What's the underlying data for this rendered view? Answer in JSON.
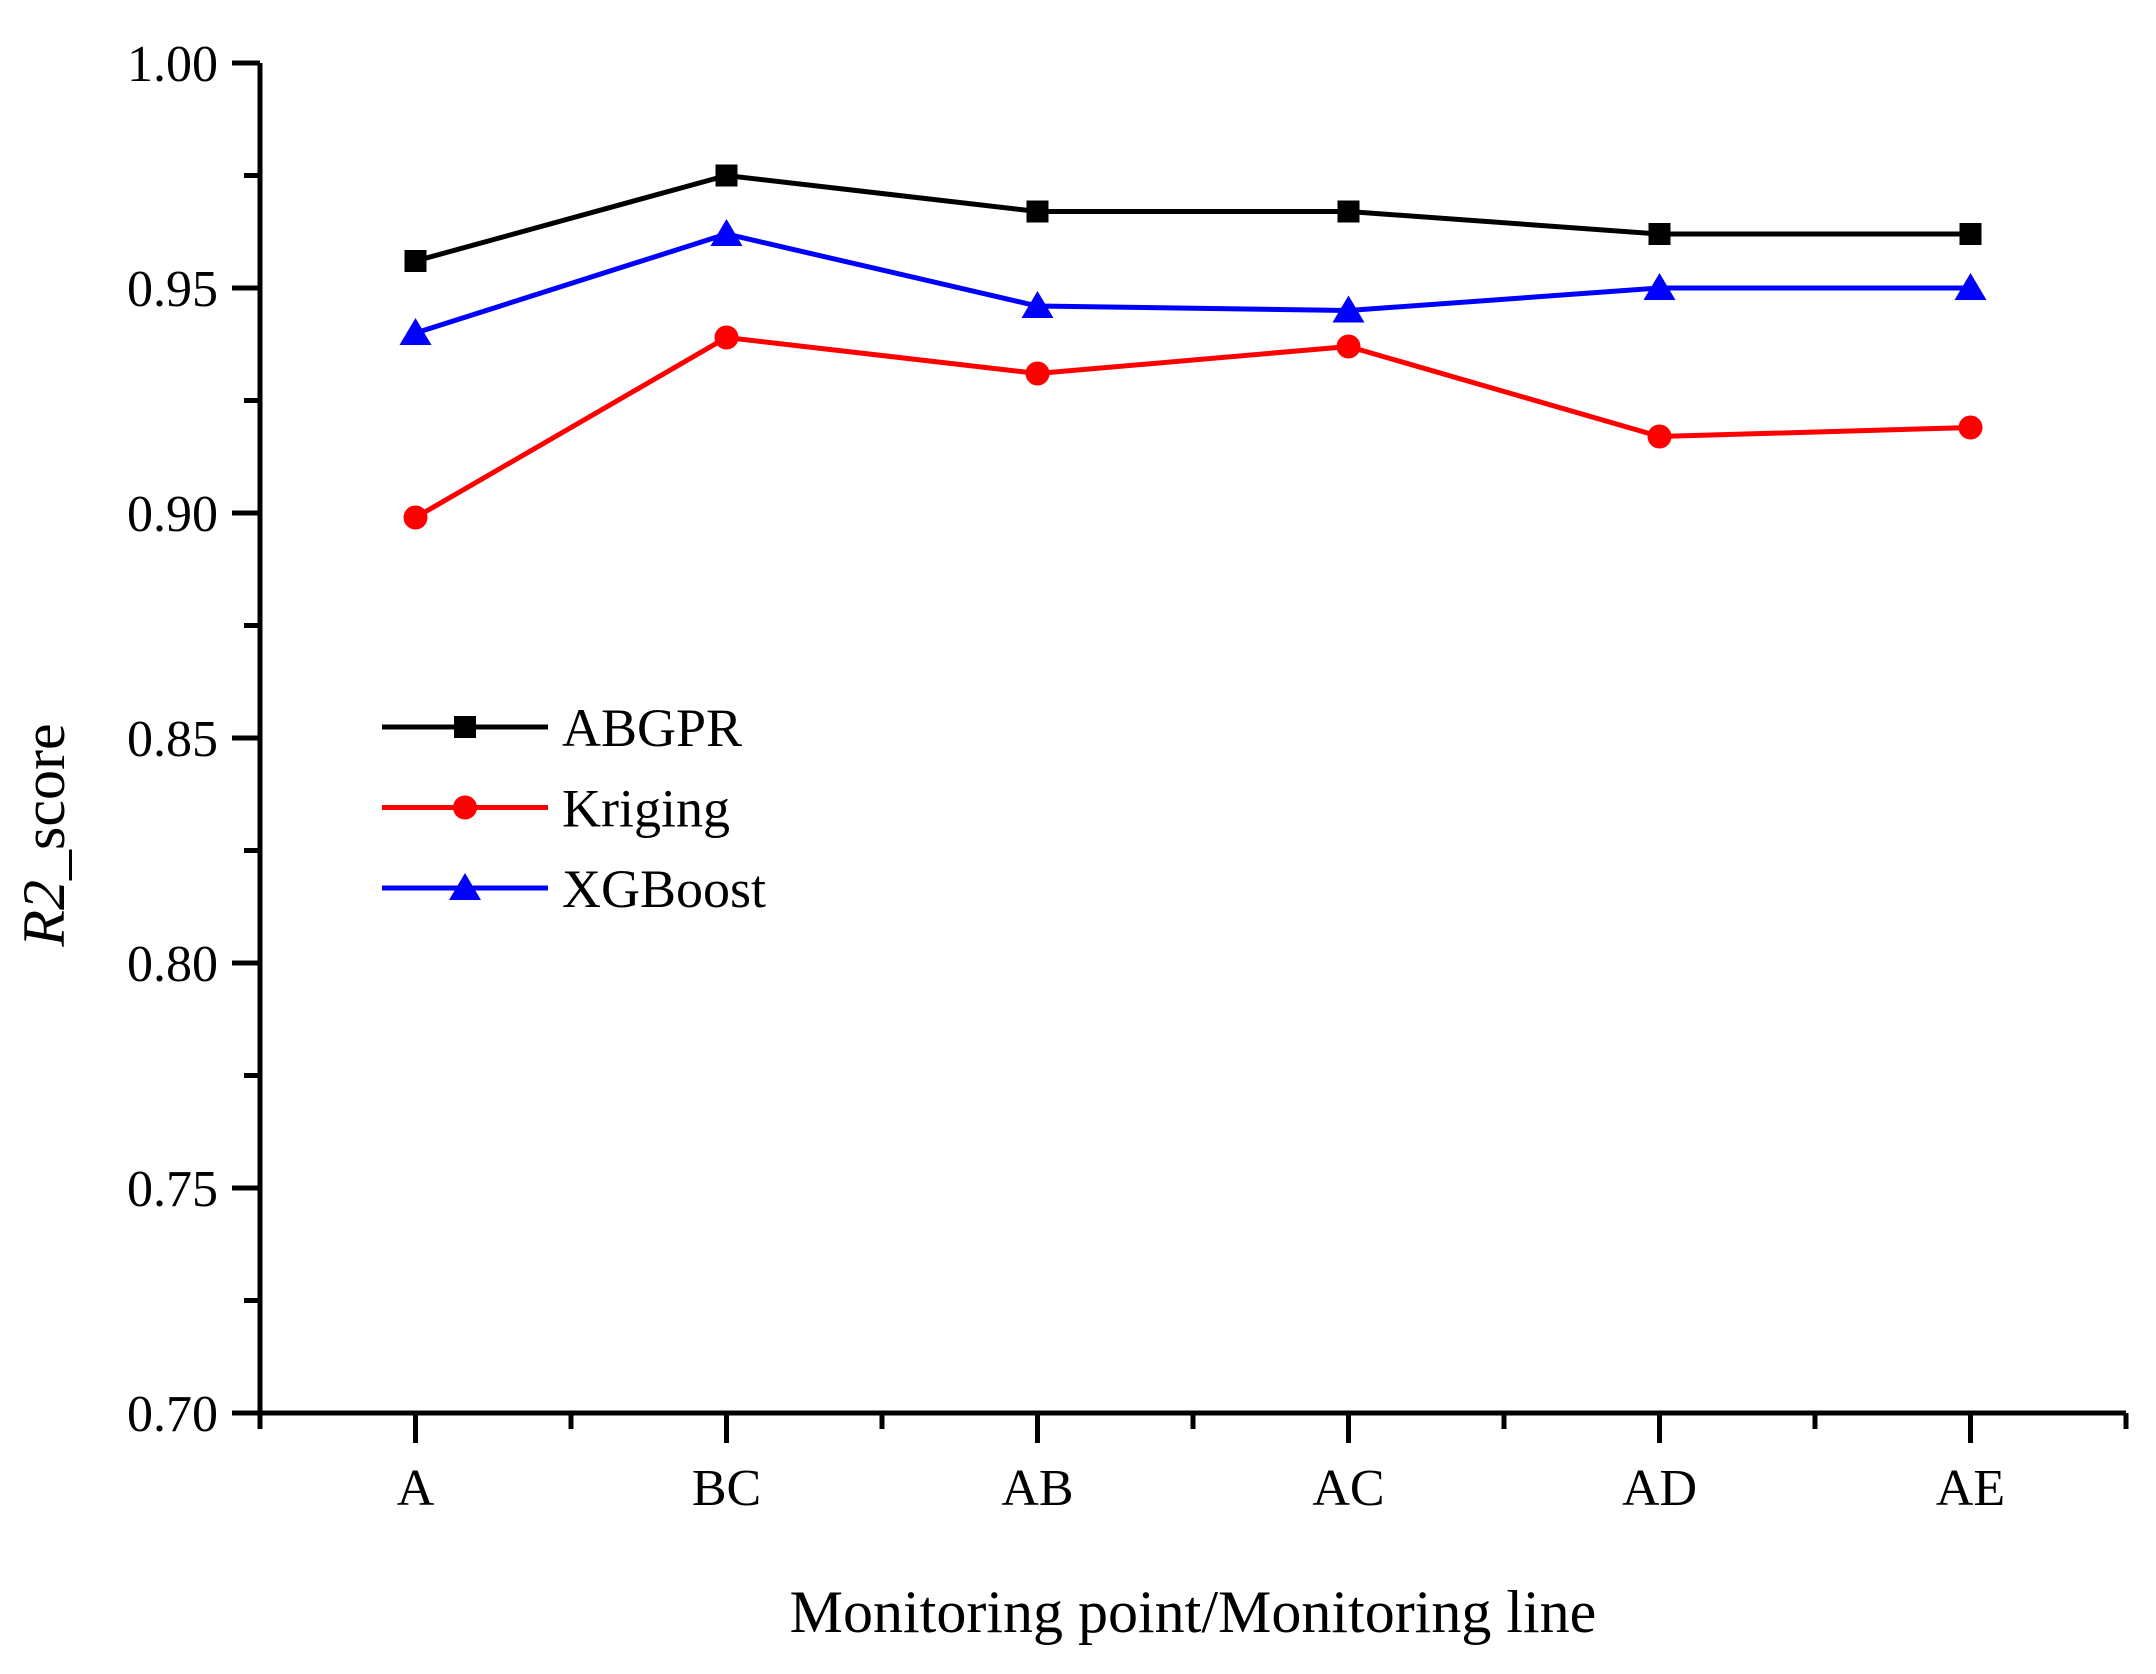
{
  "figure": {
    "background": "#ffffff",
    "text_color": "#000000"
  },
  "chart_data": {
    "type": "line",
    "categories": [
      "A",
      "BC",
      "AB",
      "AC",
      "AD",
      "AE"
    ],
    "series": [
      {
        "name": "ABGPR",
        "color": "#000000",
        "marker": "square",
        "values": [
          0.956,
          0.975,
          0.967,
          0.967,
          0.962,
          0.962
        ]
      },
      {
        "name": "Kriging",
        "color": "#ff0000",
        "marker": "circle",
        "values": [
          0.899,
          0.939,
          0.931,
          0.937,
          0.917,
          0.919
        ]
      },
      {
        "name": "XGBoost",
        "color": "#0000ff",
        "marker": "triangle",
        "values": [
          0.94,
          0.962,
          0.946,
          0.945,
          0.95,
          0.95
        ]
      }
    ],
    "xlabel": "Monitoring point/Monitoring line",
    "ylabel": "R2_score",
    "ylabel_parts": [
      {
        "text": "R2",
        "italic": true
      },
      {
        "text": "_score",
        "italic": false
      }
    ],
    "ylim": [
      0.7,
      1.0
    ],
    "yticks": [
      "0.70",
      "0.75",
      "0.80",
      "0.85",
      "0.90",
      "0.95",
      "1.00"
    ],
    "y_major_step": 0.05,
    "y_minor_step": 0.025,
    "grid": false,
    "legend_position": "center-left",
    "legend": [
      {
        "label": "ABGPR"
      },
      {
        "label": "Kriging"
      },
      {
        "label": "XGBoost"
      }
    ]
  }
}
